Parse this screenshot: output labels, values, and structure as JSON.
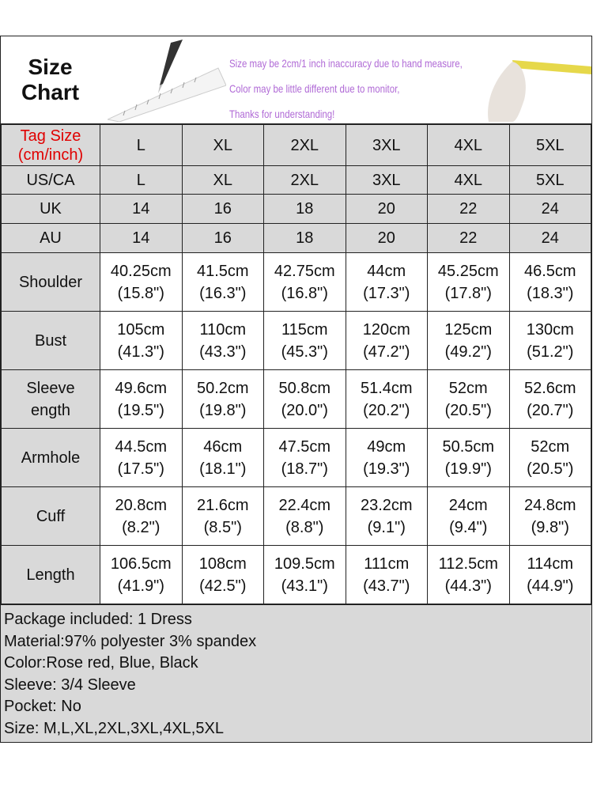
{
  "banner": {
    "title_line1": "Size",
    "title_line2": "Chart",
    "notes": [
      "Size may be 2cm/1 inch inaccuracy due to hand measure,",
      "Color may be little different due to monitor,",
      "Thanks for understanding!"
    ],
    "note_color": "#b06ad6"
  },
  "table": {
    "tag_label_1": "Tag Size",
    "tag_label_2": "(cm/inch)",
    "tag_label_color": "#e00000",
    "sizes": [
      "L",
      "XL",
      "2XL",
      "3XL",
      "4XL",
      "5XL"
    ],
    "size_rows": [
      {
        "label": "US/CA",
        "values": [
          "L",
          "XL",
          "2XL",
          "3XL",
          "4XL",
          "5XL"
        ]
      },
      {
        "label": "UK",
        "values": [
          "14",
          "16",
          "18",
          "20",
          "22",
          "24"
        ]
      },
      {
        "label": "AU",
        "values": [
          "14",
          "16",
          "18",
          "20",
          "22",
          "24"
        ]
      }
    ],
    "measure_rows": [
      {
        "label": [
          "Shoulder"
        ],
        "cm": [
          "40.25cm",
          "41.5cm",
          "42.75cm",
          "44cm",
          "45.25cm",
          "46.5cm"
        ],
        "inch": [
          "(15.8\")",
          "(16.3\")",
          "(16.8\")",
          "(17.3\")",
          "(17.8\")",
          "(18.3\")"
        ]
      },
      {
        "label": [
          "Bust"
        ],
        "cm": [
          "105cm",
          "110cm",
          "115cm",
          "120cm",
          "125cm",
          "130cm"
        ],
        "inch": [
          "(41.3\")",
          "(43.3\")",
          "(45.3\")",
          "(47.2\")",
          "(49.2\")",
          "(51.2\")"
        ]
      },
      {
        "label": [
          "Sleeve",
          "ength"
        ],
        "cm": [
          "49.6cm",
          "50.2cm",
          "50.8cm",
          "51.4cm",
          "52cm",
          "52.6cm"
        ],
        "inch": [
          "(19.5\")",
          "(19.8\")",
          "(20.0\")",
          "(20.2\")",
          "(20.5\")",
          "(20.7\")"
        ]
      },
      {
        "label": [
          "Armhole"
        ],
        "cm": [
          "44.5cm",
          "46cm",
          "47.5cm",
          "49cm",
          "50.5cm",
          "52cm"
        ],
        "inch": [
          "(17.5\")",
          "(18.1\")",
          "(18.7\")",
          "(19.3\")",
          "(19.9\")",
          "(20.5\")"
        ]
      },
      {
        "label": [
          "Cuff"
        ],
        "cm": [
          "20.8cm",
          "21.6cm",
          "22.4cm",
          "23.2cm",
          "24cm",
          "24.8cm"
        ],
        "inch": [
          "(8.2\")",
          "(8.5\")",
          "(8.8\")",
          "(9.1\")",
          "(9.4\")",
          "(9.8\")"
        ]
      },
      {
        "label": [
          "Length"
        ],
        "cm": [
          "106.5cm",
          "108cm",
          "109.5cm",
          "111cm",
          "112.5cm",
          "114cm"
        ],
        "inch": [
          "(41.9\")",
          "(42.5\")",
          "(43.1\")",
          "(43.7\")",
          "(44.3\")",
          "(44.9\")"
        ]
      }
    ]
  },
  "info": [
    "Package included: 1 Dress",
    "Material:97% polyester 3% spandex",
    "Color:Rose red, Blue, Black",
    "Sleeve: 3/4 Sleeve",
    "Pocket: No",
    "Size: M,L,XL,2XL,3XL,4XL,5XL"
  ]
}
